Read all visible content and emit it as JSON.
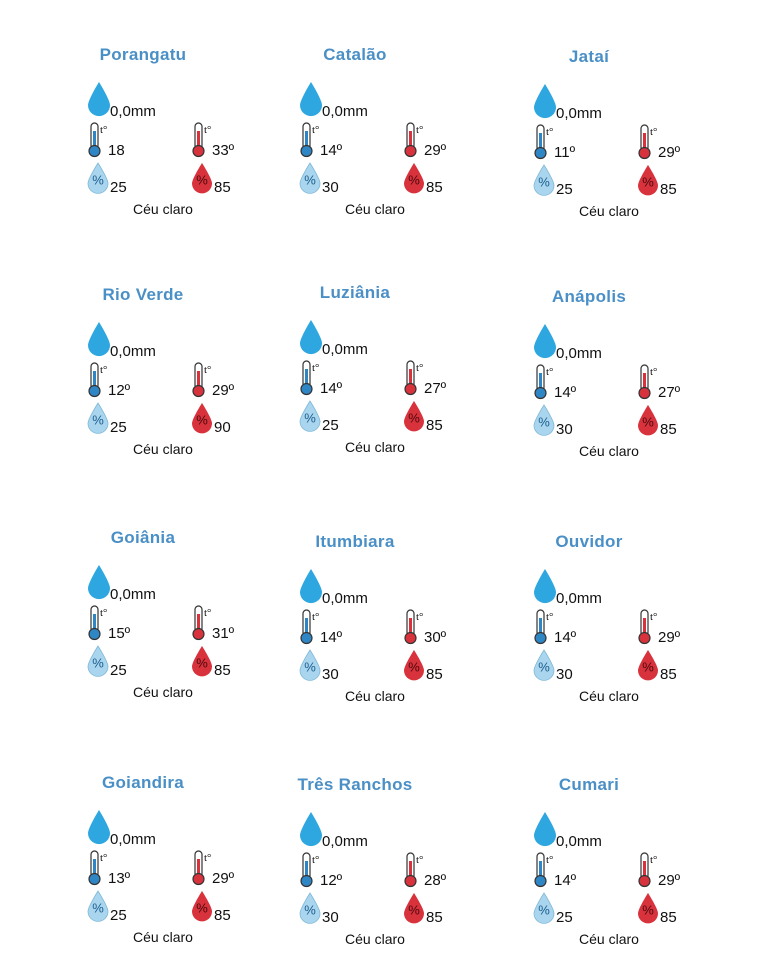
{
  "colors": {
    "city_title": "#4a8fc6",
    "rain_drop": "#2ea7e0",
    "min_thermometer": "#2f86c4",
    "max_thermometer": "#d8323c",
    "min_humidity_drop": "#a9d6ee",
    "max_humidity_drop": "#d8323c"
  },
  "icons": {
    "rain": "rain-drop-icon",
    "min_temp": "thermometer-cold-icon",
    "max_temp": "thermometer-hot-icon",
    "min_humidity": "humidity-drop-light-icon",
    "max_humidity": "humidity-drop-red-icon"
  },
  "thermometer_label": "t°",
  "humidity_label": "%",
  "cities": [
    {
      "name": "Porangatu",
      "rain": "0,0mm",
      "min_temp": "18",
      "max_temp": "33º",
      "min_humidity": "25",
      "max_humidity": "85",
      "condition": "Céu claro"
    },
    {
      "name": "Catalão",
      "rain": "0,0mm",
      "min_temp": "14º",
      "max_temp": "29º",
      "min_humidity": "30",
      "max_humidity": "85",
      "condition": "Céu claro"
    },
    {
      "name": "Jataí",
      "rain": "0,0mm",
      "min_temp": "11º",
      "max_temp": "29º",
      "min_humidity": "25",
      "max_humidity": "85",
      "condition": "Céu claro"
    },
    {
      "name": "Rio Verde",
      "rain": "0,0mm",
      "min_temp": "12º",
      "max_temp": "29º",
      "min_humidity": "25",
      "max_humidity": "90",
      "condition": "Céu claro"
    },
    {
      "name": "Luziânia",
      "rain": "0,0mm",
      "min_temp": "14º",
      "max_temp": "27º",
      "min_humidity": "25",
      "max_humidity": "85",
      "condition": "Céu claro"
    },
    {
      "name": "Anápolis",
      "rain": "0,0mm",
      "min_temp": "14º",
      "max_temp": "27º",
      "min_humidity": "30",
      "max_humidity": "85",
      "condition": "Céu claro"
    },
    {
      "name": "Goiânia",
      "rain": "0,0mm",
      "min_temp": "15º",
      "max_temp": "31º",
      "min_humidity": "25",
      "max_humidity": "85",
      "condition": "Céu claro"
    },
    {
      "name": "Itumbiara",
      "rain": "0,0mm",
      "min_temp": "14º",
      "max_temp": "30º",
      "min_humidity": "30",
      "max_humidity": "85",
      "condition": "Céu claro"
    },
    {
      "name": "Ouvidor",
      "rain": "0,0mm",
      "min_temp": "14º",
      "max_temp": "29º",
      "min_humidity": "30",
      "max_humidity": "85",
      "condition": "Céu claro"
    },
    {
      "name": "Goiandira",
      "rain": "0,0mm",
      "min_temp": "13º",
      "max_temp": "29º",
      "min_humidity": "25",
      "max_humidity": "85",
      "condition": "Céu claro"
    },
    {
      "name": "Três Ranchos",
      "rain": "0,0mm",
      "min_temp": "12º",
      "max_temp": "28º",
      "min_humidity": "30",
      "max_humidity": "85",
      "condition": "Céu claro"
    },
    {
      "name": "Cumari",
      "rain": "0,0mm",
      "min_temp": "14º",
      "max_temp": "29º",
      "min_humidity": "25",
      "max_humidity": "85",
      "condition": "Céu claro"
    }
  ]
}
